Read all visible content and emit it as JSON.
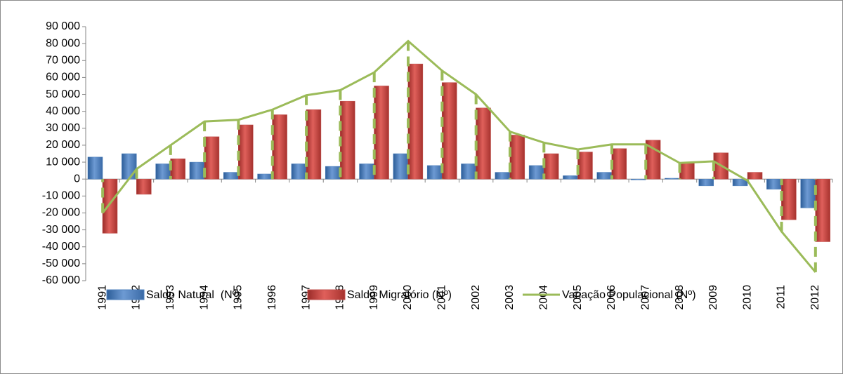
{
  "chart_data": {
    "type": "bar-line",
    "categories": [
      "1991",
      "1992",
      "1993",
      "1994",
      "1995",
      "1996",
      "1997",
      "1998",
      "1999",
      "2000",
      "2001",
      "2002",
      "2003",
      "2004",
      "2005",
      "2006",
      "2007",
      "2008",
      "2009",
      "2010",
      "2011",
      "2012"
    ],
    "series": [
      {
        "name": "Saldo Natural  (Nº)",
        "type": "bar",
        "color": "#4f81bd",
        "values": [
          13000,
          15000,
          9000,
          10000,
          4000,
          3000,
          9000,
          7500,
          9000,
          15000,
          8000,
          9000,
          4000,
          8000,
          2000,
          4000,
          -500,
          500,
          -4000,
          -4000,
          -6000,
          -17000
        ]
      },
      {
        "name": "Saldo Migratório (Nº)",
        "type": "bar",
        "color": "#c0504d",
        "values": [
          -32000,
          -9000,
          12000,
          25000,
          32000,
          38000,
          41000,
          46000,
          55000,
          68000,
          57000,
          42000,
          26000,
          15000,
          16000,
          18000,
          23000,
          9500,
          15500,
          4000,
          -24000,
          -37000
        ]
      },
      {
        "name": "Variação Populacional (Nº)",
        "type": "line",
        "color": "#9bbb59",
        "values": [
          -20000,
          6000,
          20000,
          34000,
          35000,
          41000,
          49500,
          52500,
          63000,
          81500,
          64000,
          50000,
          28000,
          21500,
          17500,
          20500,
          20500,
          9500,
          10500,
          -1000,
          -31000,
          -55000
        ]
      }
    ],
    "ylim": [
      -60000,
      90000
    ],
    "yticks": [
      {
        "value": -60000,
        "label": "-60 000"
      },
      {
        "value": -50000,
        "label": "-50 000"
      },
      {
        "value": -40000,
        "label": "-40 000"
      },
      {
        "value": -30000,
        "label": "-30 000"
      },
      {
        "value": -20000,
        "label": "-20 000"
      },
      {
        "value": -10000,
        "label": "-10 000"
      },
      0,
      {
        "value": 10000,
        "label": "10 000"
      },
      {
        "value": 20000,
        "label": "20 000"
      },
      {
        "value": 30000,
        "label": "30 000"
      },
      {
        "value": 40000,
        "label": "40 000"
      },
      {
        "value": 50000,
        "label": "50 000"
      },
      {
        "value": 60000,
        "label": "60 000"
      },
      {
        "value": 70000,
        "label": "70 000"
      },
      {
        "value": 80000,
        "label": "80 000"
      },
      {
        "value": 90000,
        "label": "90 000"
      }
    ],
    "grid": false,
    "legend": "bottom"
  }
}
